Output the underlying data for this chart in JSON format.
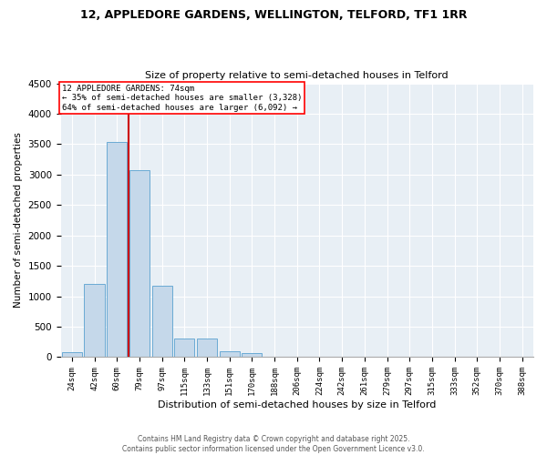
{
  "title1": "12, APPLEDORE GARDENS, WELLINGTON, TELFORD, TF1 1RR",
  "title2": "Size of property relative to semi-detached houses in Telford",
  "xlabel": "Distribution of semi-detached houses by size in Telford",
  "ylabel": "Number of semi-detached properties",
  "categories": [
    "24sqm",
    "42sqm",
    "60sqm",
    "79sqm",
    "97sqm",
    "115sqm",
    "133sqm",
    "151sqm",
    "170sqm",
    "188sqm",
    "206sqm",
    "224sqm",
    "242sqm",
    "261sqm",
    "279sqm",
    "297sqm",
    "315sqm",
    "333sqm",
    "352sqm",
    "370sqm",
    "388sqm"
  ],
  "values": [
    80,
    1200,
    3530,
    3080,
    1180,
    310,
    310,
    100,
    60,
    5,
    0,
    0,
    0,
    0,
    0,
    0,
    0,
    0,
    0,
    0,
    0
  ],
  "bar_color": "#c5d8ea",
  "bar_edge_color": "#6aaad4",
  "vline_x_index": 2.5,
  "vline_color": "#cc0000",
  "annotation_text": "12 APPLEDORE GARDENS: 74sqm\n← 35% of semi-detached houses are smaller (3,328)\n64% of semi-detached houses are larger (6,092) →",
  "ylim": [
    0,
    4500
  ],
  "yticks": [
    0,
    500,
    1000,
    1500,
    2000,
    2500,
    3000,
    3500,
    4000,
    4500
  ],
  "footnote1": "Contains HM Land Registry data © Crown copyright and database right 2025.",
  "footnote2": "Contains public sector information licensed under the Open Government Licence v3.0.",
  "bg_color": "#e8eff5"
}
